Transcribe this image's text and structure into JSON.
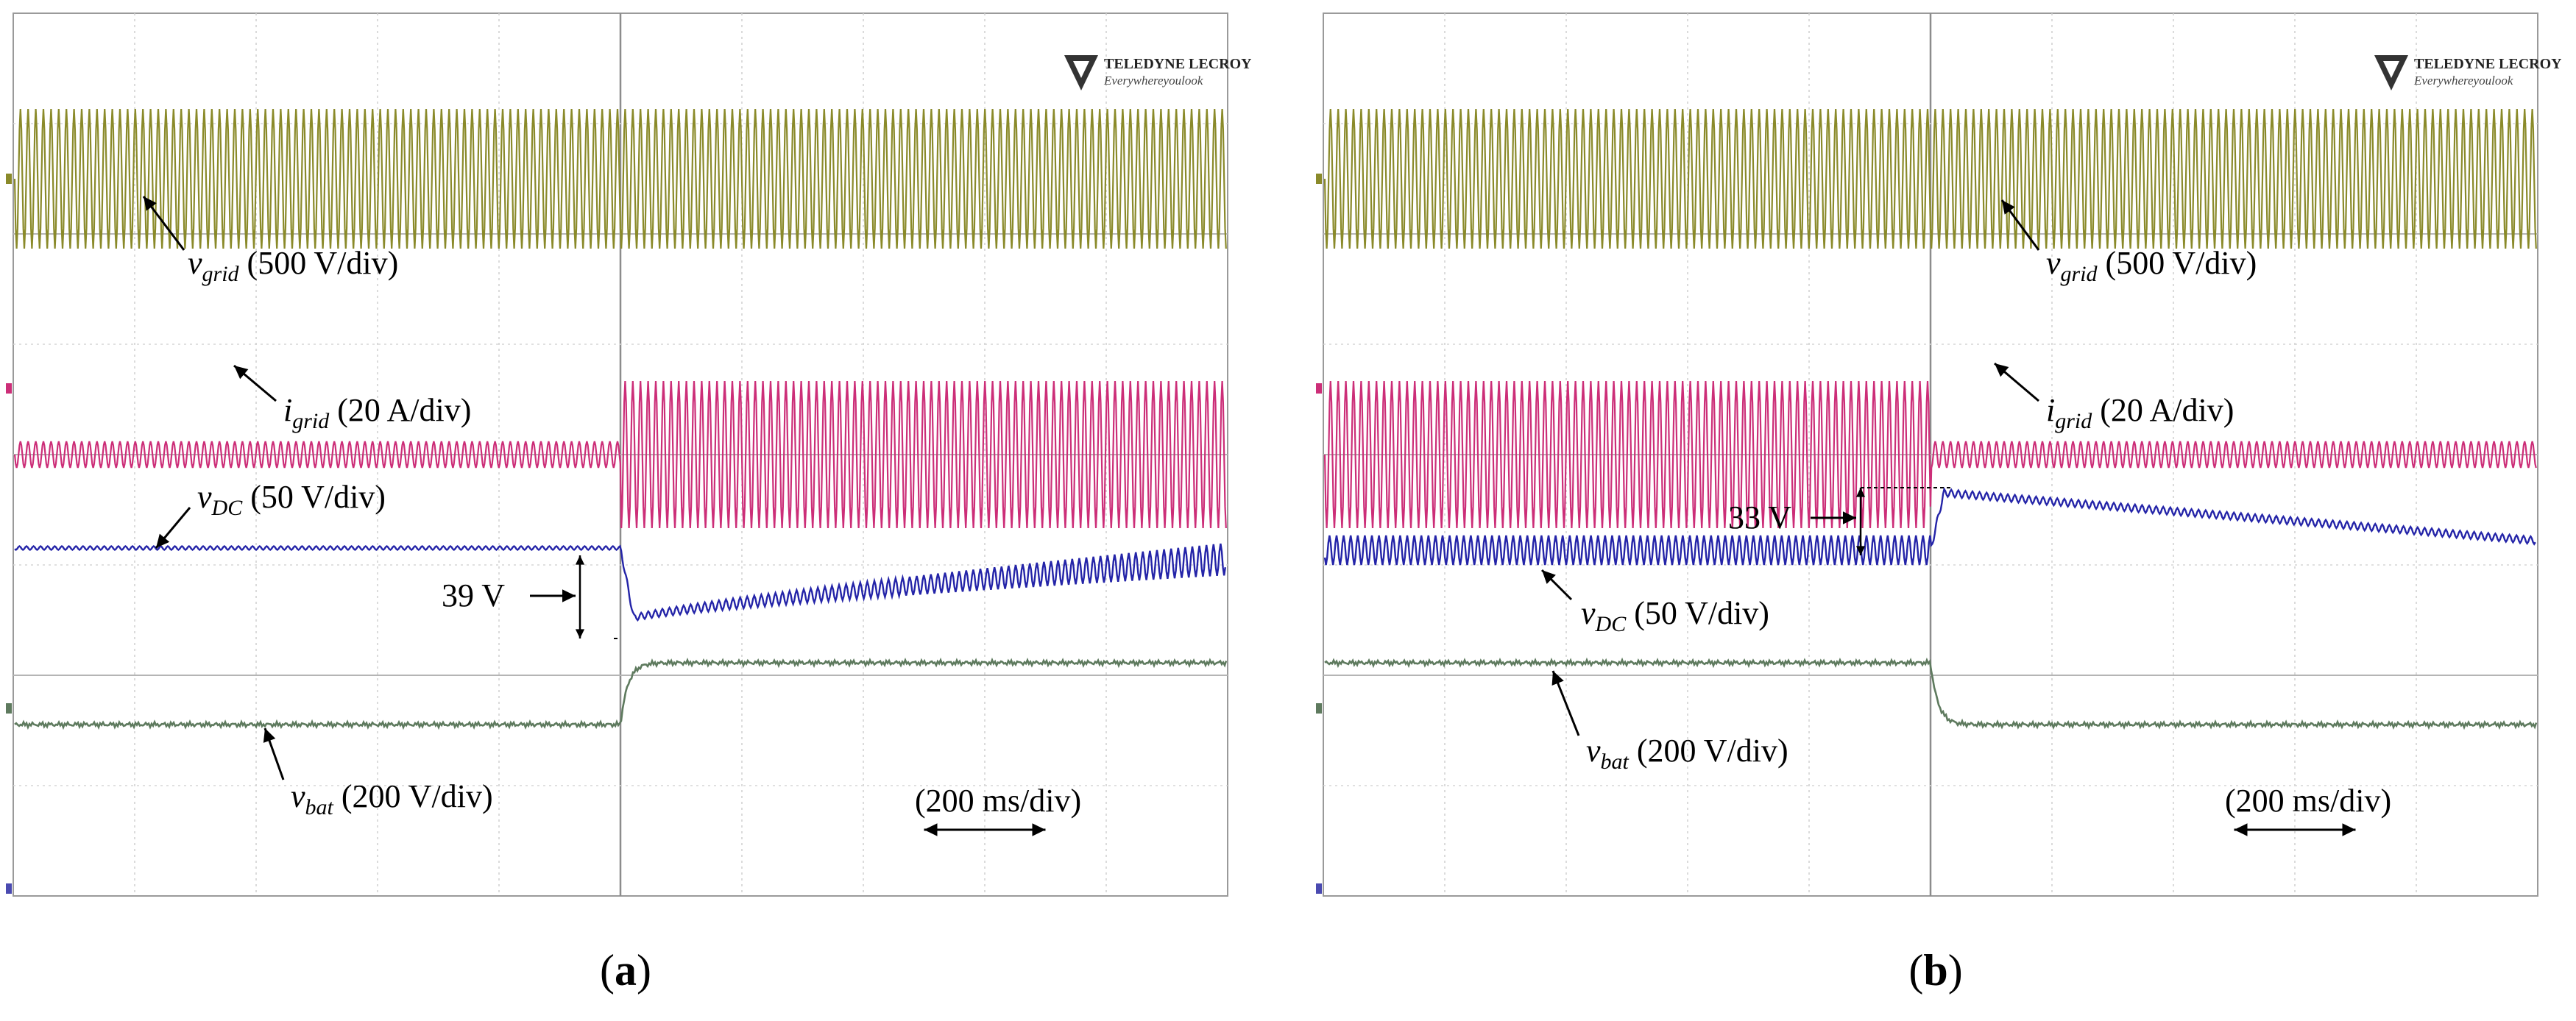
{
  "figure": {
    "panels": [
      {
        "caption_prefix": "(",
        "caption_letter": "a",
        "caption_suffix": ")"
      },
      {
        "caption_prefix": "(",
        "caption_letter": "b",
        "caption_suffix": ")"
      }
    ]
  },
  "chart_data": [
    {
      "type": "line",
      "title": "(a)",
      "instrument_brand": "TELEDYNE LECROY",
      "instrument_tagline": "Everywhereyoulook",
      "time_scale_label": "(200 ms/div)",
      "time_divisions": 10,
      "step_time_div": 5,
      "colors": {
        "vgrid": "#8a8a2a",
        "igrid": "#cc2e78",
        "vdc": "#2424a8",
        "vbat": "#5e7a5e"
      },
      "series": [
        {
          "key": "vgrid",
          "name": "v",
          "subscript": "grid",
          "scale": "(500 V/div)",
          "before_amplitude": "constant",
          "after_amplitude": "constant"
        },
        {
          "key": "igrid",
          "name": "i",
          "subscript": "grid",
          "scale": "(20 A/div)",
          "before_amplitude": "low",
          "after_amplitude": "high"
        },
        {
          "key": "vdc",
          "name": "v",
          "subscript": "DC",
          "scale": "(50 V/div)",
          "step_label": "39 V",
          "step_direction": "dip"
        },
        {
          "key": "vbat",
          "name": "v",
          "subscript": "bat",
          "scale": "(200 V/div)",
          "before_level": "low",
          "after_level": "high"
        }
      ]
    },
    {
      "type": "line",
      "title": "(b)",
      "instrument_brand": "TELEDYNE LECROY",
      "instrument_tagline": "Everywhereyoulook",
      "time_scale_label": "(200 ms/div)",
      "time_divisions": 10,
      "step_time_div": 5,
      "colors": {
        "vgrid": "#8a8a2a",
        "igrid": "#cc2e78",
        "vdc": "#2424a8",
        "vbat": "#5e7a5e"
      },
      "series": [
        {
          "key": "vgrid",
          "name": "v",
          "subscript": "grid",
          "scale": "(500 V/div)",
          "before_amplitude": "constant",
          "after_amplitude": "constant"
        },
        {
          "key": "igrid",
          "name": "i",
          "subscript": "grid",
          "scale": "(20 A/div)",
          "before_amplitude": "high",
          "after_amplitude": "low"
        },
        {
          "key": "vdc",
          "name": "v",
          "subscript": "DC",
          "scale": "(50 V/div)",
          "step_label": "33 V",
          "step_direction": "overshoot"
        },
        {
          "key": "vbat",
          "name": "v",
          "subscript": "bat",
          "scale": "(200 V/div)",
          "before_level": "high",
          "after_level": "low"
        }
      ]
    }
  ]
}
